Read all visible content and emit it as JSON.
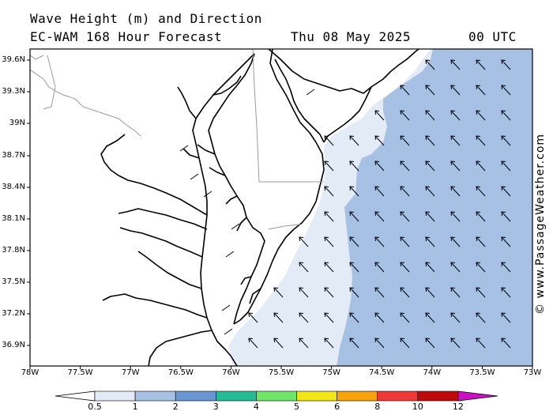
{
  "header": {
    "title_line1": "Wave Height (m) and Direction",
    "title_line2": "EC-WAM 168 Hour Forecast",
    "date": "Thu 08 May 2025",
    "time": "00 UTC"
  },
  "map": {
    "lat_labels": [
      "39.6N",
      "39.3N",
      "39N",
      "38.7N",
      "38.4N",
      "38.1N",
      "37.8N",
      "37.5N",
      "37.2N",
      "36.9N"
    ],
    "lon_labels": [
      "78W",
      "77.5W",
      "77W",
      "76.5W",
      "76W",
      "75.5W",
      "75W",
      "74.5W",
      "74W",
      "73.5W",
      "73W"
    ],
    "colors": {
      "land": "#ffffff",
      "coast": "#000000",
      "state_border": "#9a9a9a",
      "arrow": "#000000"
    },
    "wave_direction": "from south-east (arrows point north-west)"
  },
  "legend": {
    "unit": "m",
    "labels": [
      "0.5",
      "1",
      "2",
      "3",
      "4",
      "5",
      "6",
      "8",
      "10",
      "12"
    ],
    "colors": [
      "#e3ebf7",
      "#a6c1e3",
      "#6a97d3",
      "#23bc94",
      "#6fe668",
      "#f3e618",
      "#f6a30c",
      "#ef3838",
      "#be0a0a",
      "#cc10c4"
    ]
  },
  "watermark": "© www.PassageWeather.com"
}
